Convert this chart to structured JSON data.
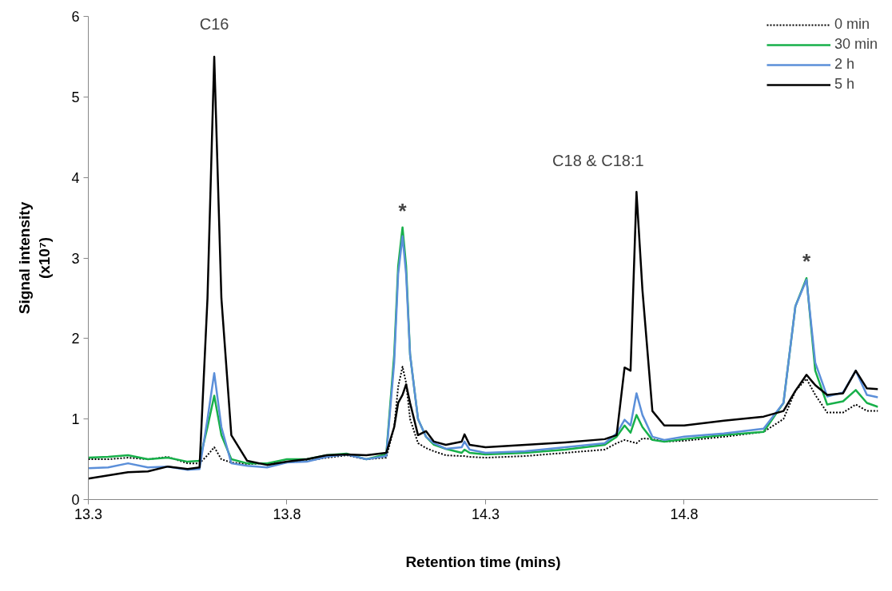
{
  "chart_data": {
    "type": "line",
    "xlabel": "Retention time (mins)",
    "ylabel": "Signal intensity\n(x10⁷)",
    "x": [
      13.3,
      13.35,
      13.4,
      13.45,
      13.5,
      13.55,
      13.58,
      13.6,
      13.617,
      13.635,
      13.66,
      13.7,
      13.75,
      13.8,
      13.85,
      13.9,
      13.95,
      14.0,
      14.05,
      14.07,
      14.08,
      14.091,
      14.1,
      14.11,
      14.13,
      14.15,
      14.17,
      14.2,
      14.24,
      14.247,
      14.26,
      14.3,
      14.4,
      14.5,
      14.6,
      14.63,
      14.65,
      14.665,
      14.68,
      14.695,
      14.72,
      14.75,
      14.8,
      14.9,
      15.0,
      15.05,
      15.08,
      15.108,
      15.13,
      15.16,
      15.2,
      15.232,
      15.26,
      15.288
    ],
    "series": [
      {
        "name": "0 min",
        "color": "#000000",
        "line_style": "dotted",
        "values": [
          0.5,
          0.5,
          0.52,
          0.5,
          0.53,
          0.45,
          0.45,
          0.55,
          0.65,
          0.5,
          0.46,
          0.44,
          0.45,
          0.46,
          0.48,
          0.52,
          0.55,
          0.5,
          0.52,
          0.9,
          1.4,
          1.65,
          1.45,
          1.0,
          0.7,
          0.64,
          0.6,
          0.55,
          0.54,
          0.54,
          0.53,
          0.52,
          0.54,
          0.58,
          0.62,
          0.7,
          0.74,
          0.72,
          0.7,
          0.76,
          0.75,
          0.72,
          0.73,
          0.78,
          0.84,
          1.0,
          1.35,
          1.5,
          1.3,
          1.08,
          1.08,
          1.18,
          1.1,
          1.1
        ]
      },
      {
        "name": "30 min",
        "color": "#17b04a",
        "line_style": "solid",
        "values": [
          0.52,
          0.53,
          0.55,
          0.5,
          0.52,
          0.47,
          0.48,
          0.9,
          1.29,
          0.8,
          0.5,
          0.45,
          0.45,
          0.5,
          0.5,
          0.55,
          0.57,
          0.5,
          0.56,
          1.8,
          2.9,
          3.38,
          2.9,
          1.8,
          1.0,
          0.78,
          0.68,
          0.63,
          0.58,
          0.62,
          0.58,
          0.56,
          0.58,
          0.62,
          0.68,
          0.78,
          0.92,
          0.83,
          1.05,
          0.9,
          0.74,
          0.72,
          0.75,
          0.8,
          0.84,
          1.2,
          2.4,
          2.75,
          1.6,
          1.18,
          1.22,
          1.36,
          1.2,
          1.15
        ]
      },
      {
        "name": "2 h",
        "color": "#5b8fd9",
        "line_style": "solid",
        "values": [
          0.39,
          0.4,
          0.45,
          0.4,
          0.41,
          0.37,
          0.38,
          1.0,
          1.57,
          0.9,
          0.45,
          0.42,
          0.4,
          0.46,
          0.47,
          0.53,
          0.56,
          0.5,
          0.54,
          1.7,
          2.8,
          3.27,
          2.8,
          1.8,
          1.0,
          0.78,
          0.7,
          0.63,
          0.65,
          0.72,
          0.62,
          0.58,
          0.6,
          0.65,
          0.7,
          0.82,
          0.99,
          0.92,
          1.32,
          1.05,
          0.78,
          0.74,
          0.78,
          0.82,
          0.88,
          1.2,
          2.4,
          2.73,
          1.7,
          1.28,
          1.33,
          1.6,
          1.3,
          1.27
        ]
      },
      {
        "name": "5 h",
        "color": "#000000",
        "line_style": "solid",
        "values": [
          0.26,
          0.3,
          0.34,
          0.35,
          0.41,
          0.38,
          0.4,
          2.5,
          5.5,
          2.5,
          0.8,
          0.48,
          0.43,
          0.47,
          0.5,
          0.55,
          0.56,
          0.55,
          0.58,
          0.9,
          1.2,
          1.3,
          1.43,
          1.2,
          0.8,
          0.85,
          0.72,
          0.68,
          0.72,
          0.81,
          0.68,
          0.65,
          0.68,
          0.71,
          0.75,
          0.8,
          1.64,
          1.6,
          3.82,
          2.6,
          1.1,
          0.92,
          0.92,
          0.98,
          1.03,
          1.1,
          1.35,
          1.55,
          1.42,
          1.3,
          1.32,
          1.6,
          1.38,
          1.37
        ]
      }
    ],
    "annotations": [
      {
        "text": "C16",
        "x": 13.617,
        "y": 5.5
      },
      {
        "text": "*",
        "x": 14.091,
        "y": 3.38
      },
      {
        "text": "C18 & C18:1",
        "x": 14.68,
        "y": 3.82
      },
      {
        "text": "*",
        "x": 15.108,
        "y": 2.75
      }
    ],
    "xlim": [
      13.3,
      15.288
    ],
    "ylim": [
      0,
      6
    ],
    "xticks": [
      13.3,
      13.8,
      14.3,
      14.8
    ],
    "yticks": [
      0,
      1,
      2,
      3,
      4,
      5,
      6
    ],
    "grid": false,
    "legend": "top right"
  }
}
